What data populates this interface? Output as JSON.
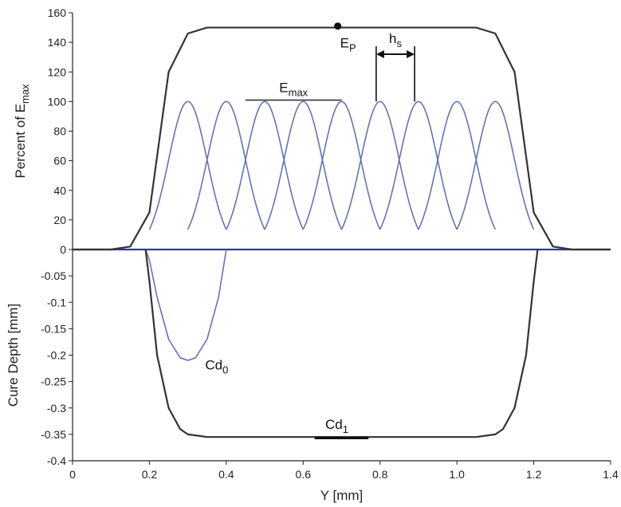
{
  "chart_data": [
    {
      "type": "line",
      "panel": "top",
      "ylabel": "Percent of E",
      "ylabel_sub": "max",
      "ylim": [
        0,
        160
      ],
      "yticks": [
        "0",
        "20",
        "40",
        "60",
        "80",
        "100",
        "120",
        "140",
        "160"
      ],
      "grid": false,
      "series": [
        {
          "kind": "energy-profile",
          "color": "#6674b0",
          "sigma": 0.05,
          "peak": 100,
          "centers": [
            0.3,
            0.4,
            0.5,
            0.6,
            0.7,
            0.8,
            0.9,
            1.0,
            1.1
          ]
        },
        {
          "kind": "cumulative-exposure",
          "color": "#333333",
          "x": [
            0,
            0.1,
            0.15,
            0.2,
            0.25,
            0.3,
            0.35,
            1.05,
            1.1,
            1.15,
            1.2,
            1.25,
            1.3,
            1.4
          ],
          "y": [
            0,
            0,
            2,
            25,
            120,
            146,
            150,
            150,
            146,
            120,
            25,
            2,
            0,
            0
          ]
        }
      ],
      "annotations": {
        "ep": {
          "base": "E",
          "sub": "P",
          "x": 0.69,
          "y": 151
        },
        "emax": {
          "base": "E",
          "sub": "max",
          "x_from": 0.45,
          "x_to": 0.7,
          "y": 101
        },
        "hs": {
          "base": "h",
          "sub": "s",
          "x_from": 0.79,
          "x_to": 0.89,
          "y": 132
        }
      }
    },
    {
      "type": "line",
      "panel": "bottom",
      "xlabel": "Y [mm]",
      "ylabel": "Cure Depth [mm]",
      "xlim": [
        0,
        1.4
      ],
      "ylim": [
        -0.4,
        0
      ],
      "xticks": [
        "0",
        "0.2",
        "0.4",
        "0.6",
        "0.8",
        "1.0",
        "1.2",
        "1.4"
      ],
      "yticks": [
        "-0.4",
        "-0.35",
        "-0.3",
        "-0.25",
        "-0.2",
        "-0.15",
        "-0.1",
        "-0.05"
      ],
      "grid": false,
      "series": [
        {
          "kind": "single-line-cure",
          "color": "#6674b0",
          "x": [
            0.19,
            0.2,
            0.22,
            0.25,
            0.28,
            0.3,
            0.32,
            0.35,
            0.38,
            0.4
          ],
          "y": [
            0,
            -0.02,
            -0.09,
            -0.17,
            -0.205,
            -0.21,
            -0.205,
            -0.17,
            -0.09,
            0
          ]
        },
        {
          "kind": "multi-line-cure",
          "color": "#333333",
          "x": [
            0.19,
            0.2,
            0.22,
            0.25,
            0.28,
            0.3,
            0.35,
            1.05,
            1.1,
            1.12,
            1.15,
            1.18,
            1.2,
            1.21
          ],
          "y": [
            0,
            -0.06,
            -0.2,
            -0.3,
            -0.34,
            -0.35,
            -0.355,
            -0.355,
            -0.35,
            -0.34,
            -0.3,
            -0.2,
            -0.06,
            0
          ]
        }
      ],
      "annotations": {
        "cd0": {
          "base": "Cd",
          "sub": "0",
          "x": 0.345,
          "y": -0.218
        },
        "cd1": {
          "base": "Cd",
          "sub": "1",
          "x_from": 0.63,
          "x_to": 0.77,
          "y": -0.355
        }
      }
    }
  ]
}
